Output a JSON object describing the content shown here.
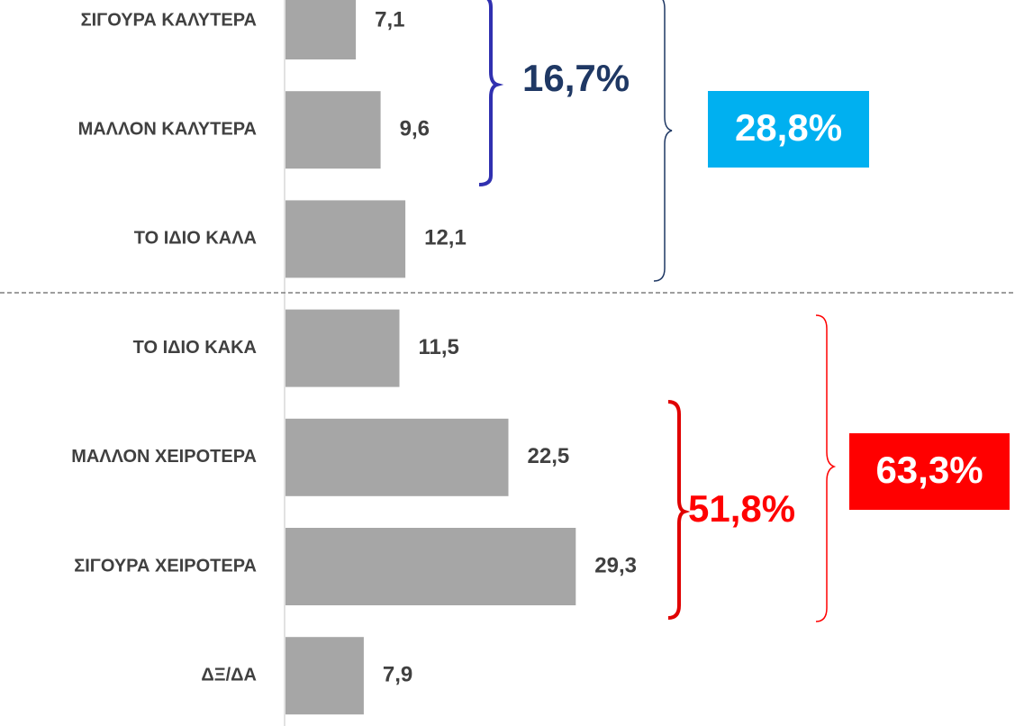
{
  "chart_data": {
    "type": "bar",
    "orientation": "horizontal",
    "categories": [
      "ΣΙΓΟΥΡΑ ΚΑΛΥΤΕΡΑ",
      "ΜΑΛΛΟΝ ΚΑΛΥΤΕΡΑ",
      "ΤΟ ΙΔΙΟ ΚΑΛΑ",
      "ΤΟ ΙΔΙΟ ΚΑΚΑ",
      "ΜΑΛΛΟΝ ΧΕΙΡΟΤΕΡΑ",
      "ΣΙΓΟΥΡΑ ΧΕΙΡΟΤΕΡΑ",
      "ΔΞ/ΔΑ"
    ],
    "values": [
      7.1,
      9.6,
      12.1,
      11.5,
      22.5,
      29.3,
      7.9
    ],
    "value_labels": [
      "7,1",
      "9,6",
      "12,1",
      "11,5",
      "22,5",
      "29,3",
      "7,9"
    ],
    "color": "#a6a6a6",
    "annotations": [
      "16,7%",
      "28,8%",
      "51,8%",
      "63,3%"
    ]
  }
}
